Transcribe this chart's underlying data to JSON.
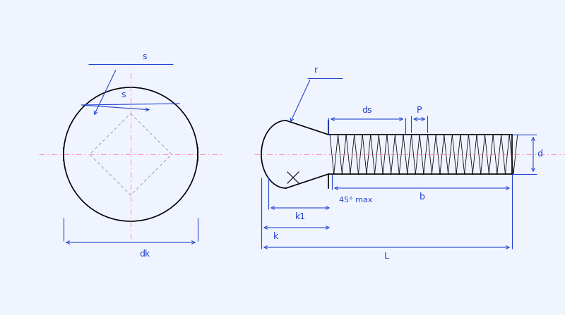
{
  "bg_color": "#f0f4ff",
  "line_color_black": "#000000",
  "line_color_blue": "#2244cc",
  "line_color_pink": "#ff88aa",
  "line_color_gray": "#aaaaaa",
  "dim_color": "#2244cc",
  "figsize": [
    8.0,
    4.47
  ],
  "dpi": 100,
  "labels": {
    "s": "s",
    "dk": "dk",
    "r": "r",
    "ds": "ds",
    "P": "P",
    "d": "d",
    "b": "b",
    "k1": "k1",
    "k": "k",
    "L": "L",
    "angle": "45° max"
  }
}
